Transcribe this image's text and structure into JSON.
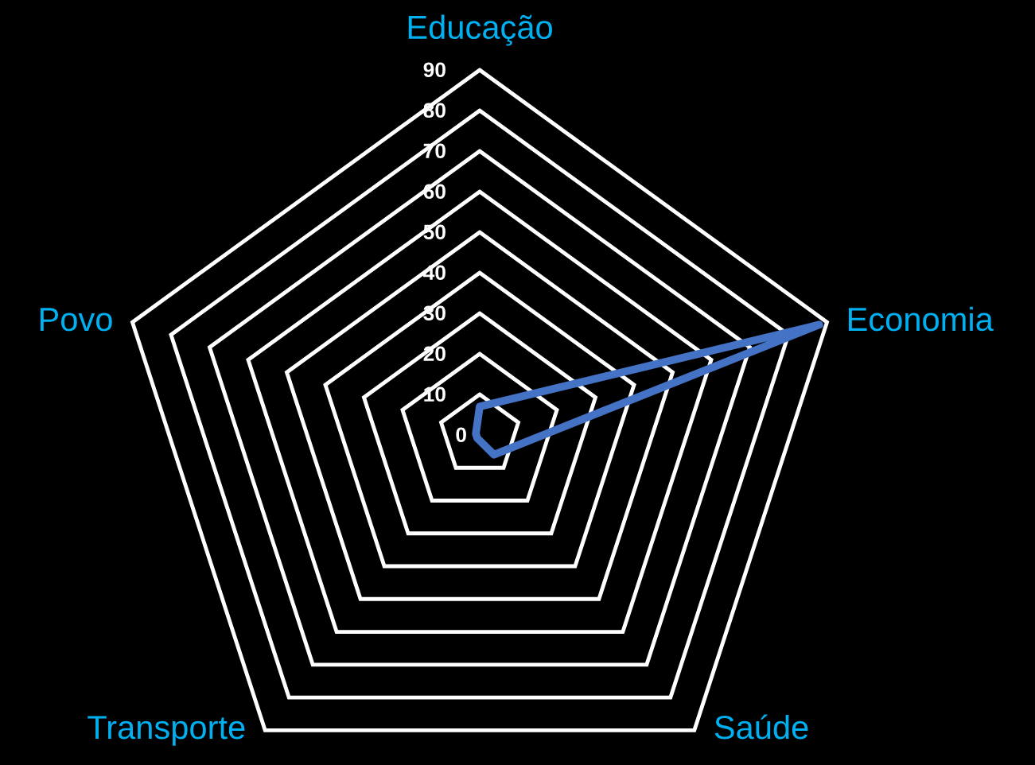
{
  "chart_data": {
    "type": "radar",
    "categories": [
      "Educação",
      "Economia",
      "Saúde",
      "Transporte",
      "Povo"
    ],
    "series": [
      {
        "color": "#4472c4",
        "values": [
          7,
          88,
          6,
          1,
          1
        ]
      }
    ],
    "ylim": [
      0,
      90
    ],
    "yticks": [
      0,
      10,
      20,
      30,
      40,
      50,
      60,
      70,
      80,
      90
    ],
    "grid": true
  }
}
